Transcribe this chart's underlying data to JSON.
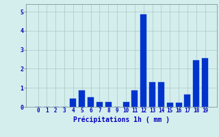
{
  "categories": [
    0,
    1,
    2,
    3,
    4,
    5,
    6,
    7,
    8,
    9,
    10,
    11,
    12,
    13,
    14,
    15,
    16,
    17,
    18,
    19
  ],
  "values": [
    0.0,
    0.0,
    0.0,
    0.0,
    0.45,
    0.85,
    0.5,
    0.25,
    0.25,
    0.0,
    0.25,
    0.85,
    4.85,
    1.3,
    1.3,
    0.2,
    0.2,
    0.65,
    2.45,
    2.55
  ],
  "bar_color": "#0033cc",
  "background_color": "#d4eeed",
  "grid_color": "#aac8c4",
  "xlabel": "Précipitations 1h ( mm )",
  "ylim": [
    0,
    5.4
  ],
  "yticks": [
    0,
    1,
    2,
    3,
    4,
    5
  ],
  "xlabel_color": "#0000bb",
  "tick_color": "#0000bb",
  "bar_edge_color": "#0033cc",
  "spine_color": "#7a9a99"
}
